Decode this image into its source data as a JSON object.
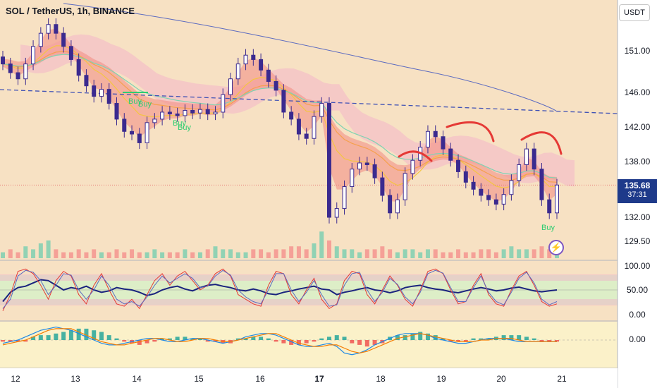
{
  "header": {
    "title": "SOL / TetherUS, 1h, BINANCE",
    "currency_button": "USDT"
  },
  "price_badge": {
    "price": "135.68",
    "countdown": "37:31"
  },
  "icons": {
    "flash": "lightning-icon"
  },
  "chart_data": [
    {
      "type": "candlestick",
      "title": "SOL / TetherUS, 1h, BINANCE",
      "x_tick_labels": [
        "12",
        "13",
        "14",
        "15",
        "16",
        "17",
        "18",
        "19",
        "20",
        "21"
      ],
      "y_tick_labels": [
        "151.00",
        "146.00",
        "142.00",
        "138.00",
        "135.68",
        "132.00",
        "129.50"
      ],
      "y_axis_side": "right",
      "ylim": [
        129.5,
        154.5
      ],
      "last_price": 135.68,
      "close_series": [
        149.5,
        148.5,
        147.8,
        149.5,
        151.5,
        153.0,
        154.0,
        153.0,
        151.5,
        150.0,
        148.2,
        147.0,
        145.8,
        146.6,
        145.0,
        143.2,
        141.8,
        141.5,
        140.5,
        142.8,
        143.2,
        144.0,
        143.8,
        143.6,
        144.2,
        143.9,
        144.3,
        143.8,
        144.0,
        146.0,
        147.8,
        149.5,
        150.5,
        150.0,
        148.8,
        147.5,
        146.5,
        144.0,
        143.2,
        141.5,
        141.0,
        143.5,
        145.0,
        132.0,
        133.0,
        135.5,
        137.5,
        138.2,
        138.0,
        136.5,
        134.5,
        132.5,
        134.0,
        137.0,
        138.5,
        140.0,
        141.8,
        141.2,
        139.8,
        138.5,
        137.2,
        136.0,
        135.2,
        134.5,
        134.0,
        133.5,
        134.6,
        136.2,
        138.0,
        139.8,
        137.5,
        134.0,
        132.5,
        135.68
      ],
      "annotations": [
        "Buy",
        "Buy",
        "Buy",
        "Buy",
        "Buy"
      ],
      "price_lines": [
        {
          "name": "dashed trendline",
          "style": "dashed",
          "color": "#3f51b5"
        },
        {
          "name": "moving average",
          "style": "solid",
          "color": "#5c6bc0"
        }
      ],
      "volume": [
        2,
        3,
        2,
        4,
        3,
        5,
        6,
        3,
        2,
        2,
        3,
        2,
        3,
        2,
        2,
        3,
        2,
        3,
        2,
        2,
        3,
        2,
        2,
        2,
        3,
        2,
        2,
        3,
        4,
        3,
        3,
        2,
        2,
        3,
        3,
        2,
        3,
        3,
        4,
        4,
        3,
        5,
        9,
        6,
        4,
        3,
        3,
        2,
        3,
        3,
        4,
        3,
        2,
        3,
        3,
        2,
        3,
        3,
        2,
        2,
        3,
        2,
        2,
        3,
        3,
        2,
        3,
        4,
        3,
        3,
        3,
        4,
        3,
        2
      ]
    },
    {
      "type": "line",
      "name": "oscillator",
      "y_tick_labels": [
        "100.00",
        "50.00",
        "0.00"
      ],
      "ylim": [
        0,
        100
      ],
      "bands": [
        20,
        80
      ],
      "series": [
        {
          "color": "#1a237e",
          "values": [
            25,
            45,
            55,
            58,
            65,
            72,
            70,
            60,
            50,
            55,
            52,
            58,
            50,
            45,
            48,
            55,
            52,
            50,
            45,
            38,
            42,
            50,
            55,
            58,
            52,
            48,
            55,
            60,
            62,
            58,
            55,
            50,
            48,
            52,
            48,
            42,
            40,
            45,
            48,
            52,
            55,
            58,
            52,
            50,
            40,
            45,
            48,
            52,
            55,
            50,
            48,
            44,
            48,
            55,
            58,
            60,
            55,
            52,
            50,
            46,
            44,
            48,
            52,
            55,
            52,
            48,
            50,
            54,
            56,
            52,
            48,
            46,
            48,
            50
          ]
        },
        {
          "color": "#e53935",
          "values": [
            5,
            40,
            90,
            95,
            85,
            60,
            30,
            70,
            90,
            80,
            40,
            20,
            60,
            85,
            50,
            20,
            15,
            30,
            10,
            40,
            70,
            85,
            60,
            80,
            90,
            70,
            50,
            60,
            85,
            95,
            80,
            40,
            30,
            20,
            15,
            60,
            90,
            85,
            40,
            20,
            50,
            75,
            30,
            10,
            20,
            70,
            90,
            85,
            40,
            20,
            50,
            80,
            60,
            30,
            15,
            50,
            90,
            95,
            85,
            50,
            20,
            25,
            60,
            85,
            40,
            20,
            15,
            50,
            80,
            90,
            60,
            25,
            15,
            20
          ]
        },
        {
          "color": "#5c6bc0",
          "values": [
            10,
            30,
            80,
            92,
            88,
            70,
            40,
            60,
            85,
            82,
            50,
            30,
            50,
            80,
            60,
            30,
            20,
            25,
            15,
            35,
            60,
            80,
            65,
            75,
            85,
            75,
            55,
            58,
            80,
            92,
            82,
            50,
            35,
            25,
            20,
            50,
            85,
            85,
            50,
            25,
            45,
            70,
            40,
            15,
            18,
            60,
            85,
            88,
            50,
            25,
            45,
            75,
            62,
            35,
            20,
            45,
            85,
            92,
            86,
            55,
            25,
            25,
            55,
            80,
            45,
            25,
            18,
            45,
            75,
            88,
            65,
            30,
            18,
            25
          ]
        }
      ]
    },
    {
      "type": "bar+line",
      "name": "histogram oscillator",
      "y_tick_labels": [
        "0.00"
      ],
      "histogram": [
        -1,
        -1,
        -1,
        -1,
        2,
        3,
        3,
        4,
        5,
        6,
        7,
        7,
        6,
        5,
        3,
        1,
        -1,
        -2,
        -3,
        -2,
        -1,
        1,
        1,
        2,
        2,
        1,
        1,
        -1,
        -1,
        -2,
        -2,
        1,
        1,
        2,
        2,
        1,
        -1,
        -2,
        -3,
        -3,
        -2,
        -1,
        1,
        2,
        3,
        2,
        -2,
        -3,
        -4,
        -3,
        -2,
        2,
        3,
        3,
        4,
        5,
        4,
        3,
        1,
        -1,
        -1,
        -1,
        1,
        1,
        1,
        2,
        3,
        3,
        3,
        2,
        1,
        -1,
        -1,
        -1
      ],
      "series": [
        {
          "color": "#1e88e5",
          "values": [
            -2,
            -1,
            0,
            2,
            4,
            6,
            7,
            8,
            7,
            6,
            4,
            2,
            0,
            -2,
            -3,
            -3,
            -2,
            -1,
            0,
            1,
            1,
            0,
            -1,
            -1,
            0,
            1,
            1,
            0,
            -1,
            -2,
            -1,
            0,
            2,
            3,
            4,
            4,
            3,
            1,
            -1,
            -3,
            -4,
            -4,
            -3,
            -2,
            -4,
            -8,
            -9,
            -8,
            -6,
            -3,
            -1,
            1,
            3,
            4,
            4,
            4,
            3,
            1,
            0,
            -1,
            -2,
            -2,
            -1,
            0,
            1,
            1,
            1,
            0,
            -1,
            -1,
            -1,
            -1,
            -1,
            -1
          ]
        },
        {
          "color": "#f57c00",
          "values": [
            -3,
            -2,
            -1,
            0,
            2,
            4,
            6,
            7,
            7,
            7,
            5,
            3,
            1,
            -1,
            -2,
            -3,
            -3,
            -2,
            -1,
            0,
            1,
            1,
            0,
            -1,
            -1,
            0,
            1,
            1,
            0,
            -1,
            -1,
            0,
            1,
            2,
            3,
            4,
            4,
            2,
            0,
            -2,
            -3,
            -4,
            -4,
            -3,
            -3,
            -5,
            -7,
            -8,
            -7,
            -5,
            -3,
            -1,
            1,
            2,
            3,
            4,
            3,
            2,
            1,
            0,
            -1,
            -1,
            -1,
            0,
            0,
            1,
            1,
            1,
            0,
            -1,
            -1,
            -1,
            -1,
            -1
          ]
        }
      ]
    }
  ]
}
